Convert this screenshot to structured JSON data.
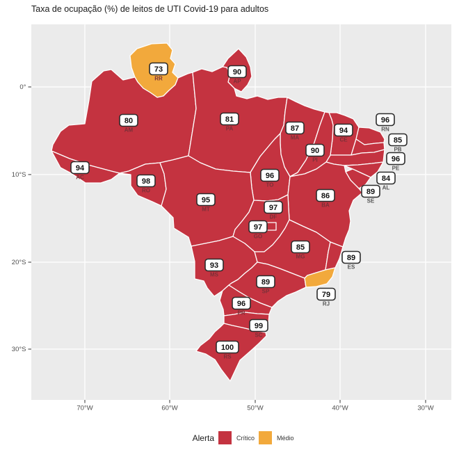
{
  "title": "Taxa de ocupação (%) de leitos de UTI Covid-19 para adultos",
  "legend": {
    "title": "Alerta",
    "items": [
      {
        "label": "Crítico",
        "color": "#C43340"
      },
      {
        "label": "Médio",
        "color": "#F2A93C"
      }
    ]
  },
  "colors": {
    "panel": "#EBEBEB",
    "grid": "#FFFFFF",
    "tick": "#333333",
    "state_border": "#FFFFFF",
    "label_box_bg": "#FFFFFF",
    "label_box_border": "#2B2B2B",
    "code_on_map": "#7A3038",
    "code_offshore": "#555555"
  },
  "axes": {
    "x": {
      "ticks": [
        "70°W",
        "60°W",
        "50°W",
        "40°W",
        "30°W"
      ]
    },
    "y": {
      "ticks": [
        "0°",
        "10°S",
        "20°S",
        "30°S"
      ]
    }
  },
  "chart_data": {
    "type": "choropleth_map",
    "region": "Brazil - states (UF)",
    "title": "Taxa de ocupação (%) de leitos de UTI Covid-19 para adultos",
    "legend_title": "Alerta",
    "alert_levels": [
      "Crítico",
      "Médio"
    ],
    "legend_position": "bottom",
    "x_ticks": [
      "70°W",
      "60°W",
      "50°W",
      "40°W",
      "30°W"
    ],
    "y_ticks": [
      "0°",
      "10°S",
      "20°S",
      "30°S"
    ],
    "states": [
      {
        "code": "RR",
        "value": 73,
        "alert": "Médio"
      },
      {
        "code": "AP",
        "value": 90,
        "alert": "Crítico"
      },
      {
        "code": "AM",
        "value": 80,
        "alert": "Crítico"
      },
      {
        "code": "PA",
        "value": 81,
        "alert": "Crítico"
      },
      {
        "code": "MA",
        "value": 87,
        "alert": "Crítico"
      },
      {
        "code": "CE",
        "value": 94,
        "alert": "Crítico"
      },
      {
        "code": "RN",
        "value": 96,
        "alert": "Crítico"
      },
      {
        "code": "PB",
        "value": 85,
        "alert": "Crítico"
      },
      {
        "code": "PE",
        "value": 96,
        "alert": "Crítico"
      },
      {
        "code": "PI",
        "value": 90,
        "alert": "Crítico"
      },
      {
        "code": "AL",
        "value": 84,
        "alert": "Crítico"
      },
      {
        "code": "SE",
        "value": 89,
        "alert": "Crítico"
      },
      {
        "code": "AC",
        "value": 94,
        "alert": "Crítico"
      },
      {
        "code": "RO",
        "value": 98,
        "alert": "Crítico"
      },
      {
        "code": "TO",
        "value": 96,
        "alert": "Crítico"
      },
      {
        "code": "BA",
        "value": 86,
        "alert": "Crítico"
      },
      {
        "code": "MT",
        "value": 95,
        "alert": "Crítico"
      },
      {
        "code": "GO",
        "value": 97,
        "alert": "Crítico"
      },
      {
        "code": "DF",
        "value": 97,
        "alert": "Crítico"
      },
      {
        "code": "MG",
        "value": 85,
        "alert": "Crítico"
      },
      {
        "code": "ES",
        "value": 89,
        "alert": "Crítico"
      },
      {
        "code": "MS",
        "value": 93,
        "alert": "Crítico"
      },
      {
        "code": "SP",
        "value": 89,
        "alert": "Crítico"
      },
      {
        "code": "RJ",
        "value": 79,
        "alert": "Médio"
      },
      {
        "code": "PR",
        "value": 96,
        "alert": "Crítico"
      },
      {
        "code": "SC",
        "value": 99,
        "alert": "Crítico"
      },
      {
        "code": "RS",
        "value": 100,
        "alert": "Crítico"
      }
    ]
  }
}
